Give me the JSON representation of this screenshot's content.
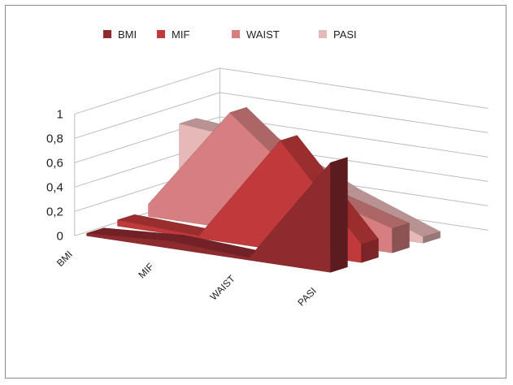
{
  "chart_data": {
    "type": "area",
    "style": "3d-area",
    "categories": [
      "BMI",
      "MIF",
      "WAIST",
      "PASI"
    ],
    "y_ticks": [
      "0",
      "0,2",
      "0,4",
      "0,6",
      "0,8",
      "1"
    ],
    "ylim": [
      0,
      1
    ],
    "grid": true,
    "legend_position": "top",
    "series": [
      {
        "name": "BMI",
        "values": [
          0.02,
          0.06,
          0.02,
          0.9
        ],
        "color": "#8e2b2f"
      },
      {
        "name": "MIF",
        "values": [
          0.05,
          0.02,
          0.9,
          0.15
        ],
        "color": "#c0393b"
      },
      {
        "name": "WAIST",
        "values": [
          0.1,
          0.95,
          0.4,
          0.2
        ],
        "color": "#d77f80"
      },
      {
        "name": "PASI",
        "values": [
          0.68,
          0.62,
          0.3,
          0.05
        ],
        "color": "#e7b8b8"
      }
    ]
  }
}
